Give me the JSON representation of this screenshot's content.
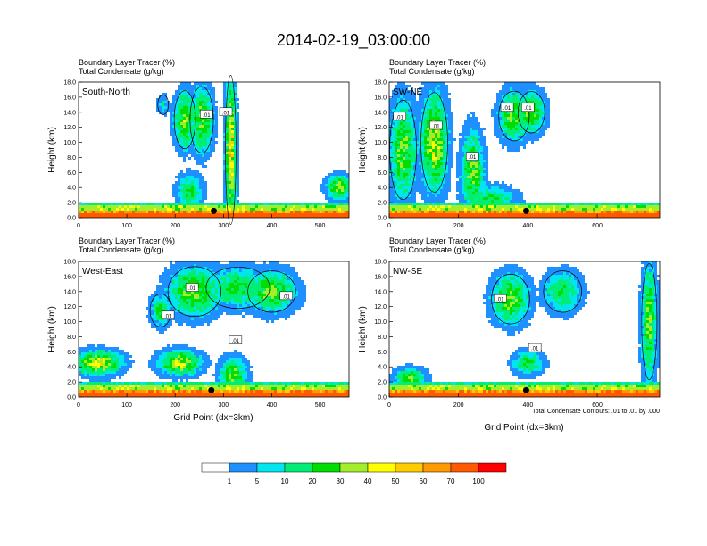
{
  "figure": {
    "title": "2014-02-19_03:00:00",
    "footnote": "Total Condensate Contours: .01 to .01 by .000"
  },
  "colorbar": {
    "labels": [
      "1",
      "5",
      "10",
      "20",
      "30",
      "40",
      "50",
      "60",
      "70",
      "100"
    ],
    "colors": [
      "#ffffff",
      "#1e90ff",
      "#00e5ee",
      "#00ee76",
      "#00dd00",
      "#a2ee2a",
      "#ffff00",
      "#ffcc00",
      "#ff9900",
      "#ff5a00",
      "#ff0000"
    ]
  },
  "chart_data": [
    {
      "type": "heatmap",
      "panel_label": "South-North",
      "header_line1": "Boundary Layer Tracer   (%)",
      "header_line2": "Total Condensate   (g/kg)",
      "ylabel": "Height (km)",
      "xlabel": "",
      "xlim": [
        0,
        560
      ],
      "ylim": [
        0,
        18
      ],
      "xticks": [
        0,
        100,
        200,
        300,
        400,
        500
      ],
      "yticks": [
        "0.0",
        "2.0",
        "4.0",
        "6.0",
        "8.0",
        "10.0",
        "12.0",
        "14.0",
        "16.0",
        "18.0"
      ],
      "marker_x": 280,
      "contour_label": ".01",
      "contour_level": 0.01,
      "contour_label_points": [
        [
          265,
          13.7
        ],
        [
          305,
          14.0
        ]
      ],
      "cloud_features": [
        {
          "x": 220,
          "z": 13.0,
          "wx": 20,
          "wz": 3.5,
          "v": 30
        },
        {
          "x": 255,
          "z": 13.0,
          "wx": 22,
          "wz": 4.0,
          "v": 30
        },
        {
          "x": 315,
          "z": 9.0,
          "wx": 10,
          "wz": 9.0,
          "v": 50
        },
        {
          "x": 230,
          "z": 3.5,
          "wx": 25,
          "wz": 2.0,
          "v": 20
        },
        {
          "x": 175,
          "z": 15.0,
          "wx": 10,
          "wz": 1.2,
          "v": 10
        },
        {
          "x": 540,
          "z": 4.0,
          "wx": 25,
          "wz": 1.5,
          "v": 30
        }
      ]
    },
    {
      "type": "heatmap",
      "panel_label": "SW-NE",
      "header_line1": "Boundary Layer Tracer   (%)",
      "header_line2": "Total Condensate   (g/kg)",
      "ylabel": "Height (km)",
      "xlabel": "",
      "xlim": [
        0,
        780
      ],
      "ylim": [
        0,
        18
      ],
      "xticks": [
        0,
        200,
        400,
        600
      ],
      "yticks": [
        "0.0",
        "2.0",
        "4.0",
        "6.0",
        "8.0",
        "10.0",
        "12.0",
        "14.0",
        "16.0",
        "18.0"
      ],
      "marker_x": 395,
      "contour_label": ".01",
      "contour_level": 0.01,
      "contour_label_points": [
        [
          30,
          13.4
        ],
        [
          135,
          12.2
        ],
        [
          240,
          8.1
        ],
        [
          340,
          14.6
        ],
        [
          400,
          14.6
        ]
      ],
      "cloud_features": [
        {
          "x": 40,
          "z": 9.0,
          "wx": 35,
          "wz": 6.0,
          "v": 30
        },
        {
          "x": 130,
          "z": 10.0,
          "wx": 35,
          "wz": 6.0,
          "v": 40
        },
        {
          "x": 240,
          "z": 6.0,
          "wx": 30,
          "wz": 5.0,
          "v": 30
        },
        {
          "x": 360,
          "z": 13.5,
          "wx": 40,
          "wz": 3.0,
          "v": 30
        },
        {
          "x": 410,
          "z": 14.0,
          "wx": 35,
          "wz": 2.5,
          "v": 30
        },
        {
          "x": 300,
          "z": 2.5,
          "wx": 60,
          "wz": 1.5,
          "v": 20
        }
      ]
    },
    {
      "type": "heatmap",
      "panel_label": "West-East",
      "header_line1": "Boundary Layer Tracer   (%)",
      "header_line2": "Total Condensate   (g/kg)",
      "ylabel": "Height (km)",
      "xlabel": "Grid Point (dx=3km)",
      "xlim": [
        0,
        560
      ],
      "ylim": [
        0,
        18
      ],
      "xticks": [
        0,
        100,
        200,
        300,
        400,
        500
      ],
      "yticks": [
        "0.0",
        "2.0",
        "4.0",
        "6.0",
        "8.0",
        "10.0",
        "12.0",
        "14.0",
        "16.0",
        "18.0"
      ],
      "marker_x": 275,
      "contour_label": ".01",
      "contour_level": 0.01,
      "contour_label_points": [
        [
          185,
          10.8
        ],
        [
          235,
          14.5
        ],
        [
          325,
          7.5
        ],
        [
          430,
          13.4
        ]
      ],
      "cloud_features": [
        {
          "x": 240,
          "z": 14.0,
          "wx": 50,
          "wz": 3.0,
          "v": 30
        },
        {
          "x": 330,
          "z": 14.5,
          "wx": 60,
          "wz": 2.5,
          "v": 20
        },
        {
          "x": 400,
          "z": 14.0,
          "wx": 45,
          "wz": 2.5,
          "v": 30
        },
        {
          "x": 40,
          "z": 4.5,
          "wx": 45,
          "wz": 1.5,
          "v": 40
        },
        {
          "x": 210,
          "z": 4.5,
          "wx": 40,
          "wz": 1.5,
          "v": 40
        },
        {
          "x": 320,
          "z": 3.0,
          "wx": 25,
          "wz": 2.0,
          "v": 30
        },
        {
          "x": 170,
          "z": 11.5,
          "wx": 20,
          "wz": 2.0,
          "v": 20
        }
      ]
    },
    {
      "type": "heatmap",
      "panel_label": "NW-SE",
      "header_line1": "Boundary Layer Tracer   (%)",
      "header_line2": "Total Condensate   (g/kg)",
      "ylabel": "Height (km)",
      "xlabel": "Grid Point (dx=3km)",
      "xlim": [
        0,
        780
      ],
      "ylim": [
        0,
        18
      ],
      "xticks": [
        0,
        200,
        400,
        600
      ],
      "yticks": [
        "0.0",
        "2.0",
        "4.0",
        "6.0",
        "8.0",
        "10.0",
        "12.0",
        "14.0",
        "16.0",
        "18.0"
      ],
      "marker_x": 395,
      "contour_label": ".01",
      "contour_level": 0.01,
      "contour_label_points": [
        [
          320,
          13.0
        ],
        [
          420,
          6.5
        ]
      ],
      "cloud_features": [
        {
          "x": 350,
          "z": 13.0,
          "wx": 50,
          "wz": 3.0,
          "v": 30
        },
        {
          "x": 500,
          "z": 14.0,
          "wx": 50,
          "wz": 2.5,
          "v": 20
        },
        {
          "x": 750,
          "z": 10.0,
          "wx": 20,
          "wz": 7.0,
          "v": 30
        },
        {
          "x": 60,
          "z": 2.5,
          "wx": 40,
          "wz": 1.2,
          "v": 30
        },
        {
          "x": 400,
          "z": 4.5,
          "wx": 40,
          "wz": 1.5,
          "v": 20
        }
      ]
    }
  ]
}
